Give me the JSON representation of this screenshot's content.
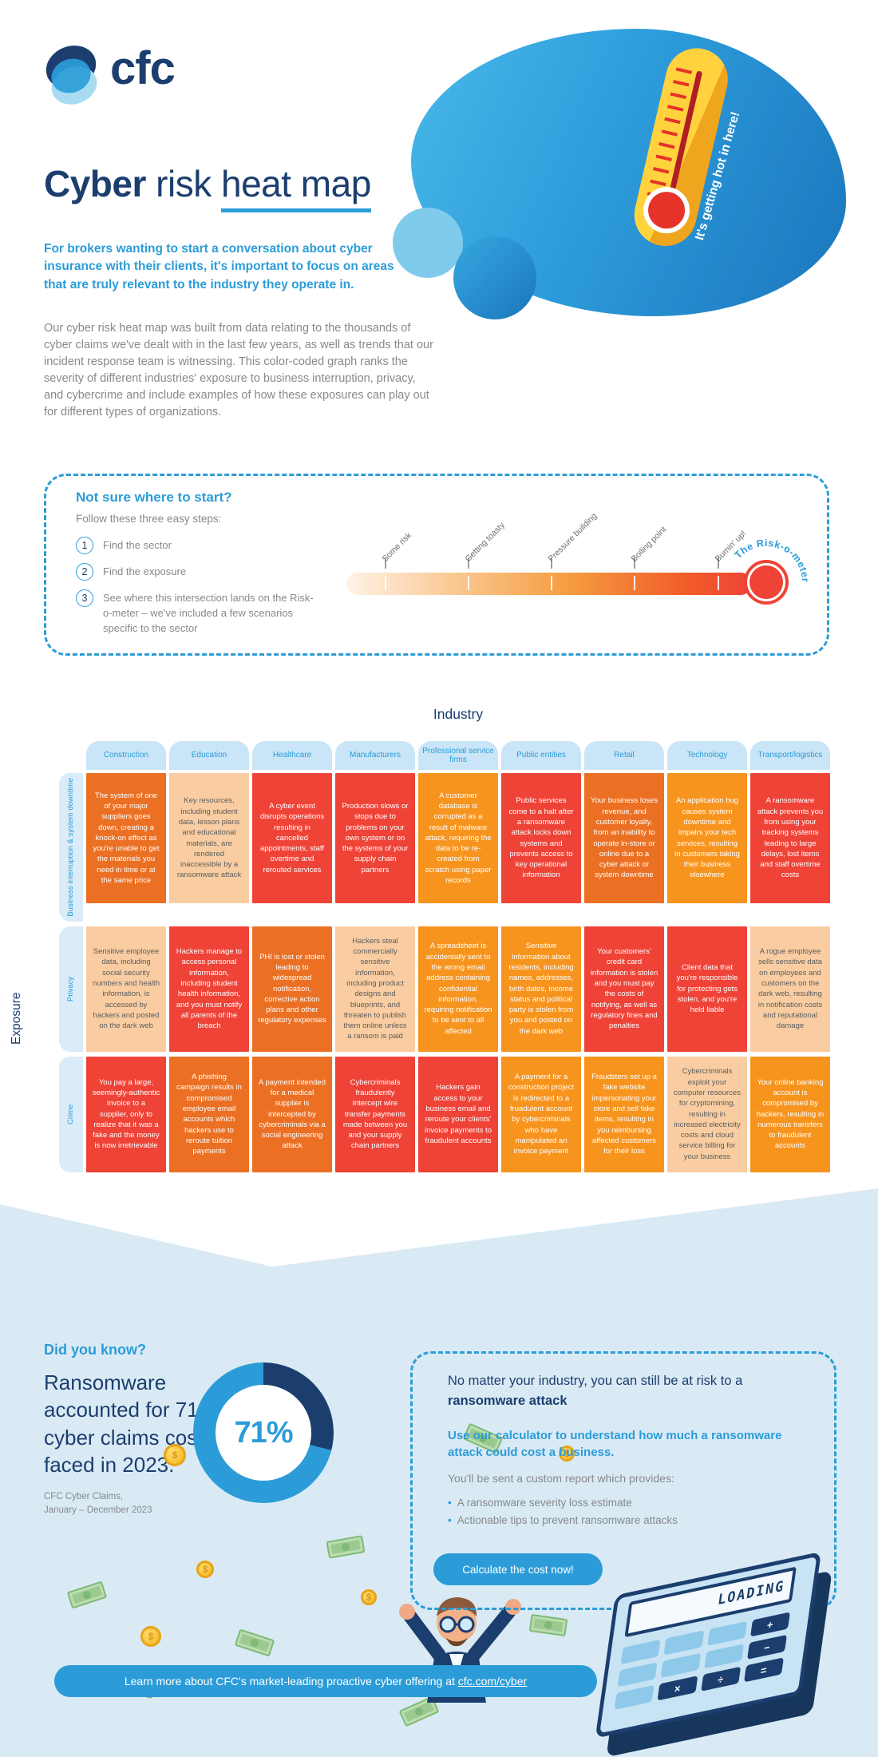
{
  "brand": {
    "logo_text": "cfc"
  },
  "header": {
    "title": {
      "bold": "Cyber",
      "regular": " risk ",
      "underlined": "heat map"
    },
    "intro": "For brokers wanting to start a conversation about cyber insurance with their clients, it's important to focus on areas that are truly relevant to the industry they operate in.",
    "body": "Our cyber risk heat map was built from data relating to the thousands of cyber claims we've dealt with in the last few years, as well as trends that our incident response team is witnessing. This color-coded graph ranks the severity of different industries' exposure to business interruption, privacy, and cybercrime and include examples of how these exposures can play out for different types of organizations.",
    "thermometer_caption": "It's getting hot in here!"
  },
  "steps_box": {
    "heading": "Not sure where to start?",
    "subheading": "Follow these three easy steps:",
    "steps": [
      {
        "num": "1",
        "text": "Find the sector"
      },
      {
        "num": "2",
        "text": "Find the exposure"
      },
      {
        "num": "3",
        "text": "See where this intersection lands on the Risk-o-meter – we've included a few scenarios specific to the sector"
      }
    ],
    "meter": {
      "labels": [
        "Some risk",
        "Getting toasty",
        "Pressure building",
        "Boiling point",
        "Burnin' up!"
      ],
      "name": "The Risk-o-meter"
    }
  },
  "heatmap": {
    "industry_label": "Industry",
    "exposure_label": "Exposure",
    "columns": [
      "Construction",
      "Education",
      "Healthcare",
      "Manufacturers",
      "Professional service firms",
      "Public entities",
      "Retail",
      "Technology",
      "Transport/logistics"
    ],
    "severity_colors": {
      "low": "#F9CDA1",
      "medium": "#F7941E",
      "high": "#EB7023",
      "severe": "#EF4337"
    },
    "rows": [
      {
        "label": "Business interruption & system downtime",
        "cells": [
          {
            "level": "high",
            "text": "The system of one of your major suppliers goes down, creating a knock-on effect as you're unable to get the materials you need in time or at the same price"
          },
          {
            "level": "low",
            "text": "Key resources, including student data, lesson plans and educational materials, are rendered inaccessible by a ransomware attack"
          },
          {
            "level": "severe",
            "text": "A cyber event disrupts operations resulting in cancelled appointments, staff overtime and rerouted services"
          },
          {
            "level": "severe",
            "text": "Production slows or stops due to problems on your own system or on the systems of your supply chain partners"
          },
          {
            "level": "med",
            "text": "A customer database is corrupted as a result of malware attack, requiring the data to be re-created from scratch using paper records"
          },
          {
            "level": "severe",
            "text": "Public services come to a halt after a ransomware attack locks down systems and prevents access to key operational information"
          },
          {
            "level": "high",
            "text": "Your business loses revenue, and customer loyalty, from an inability to operate in-store or online due to a cyber attack or system downtime"
          },
          {
            "level": "med",
            "text": "An application bug causes system downtime and impairs your tech services, resulting in customers taking their business elsewhere"
          },
          {
            "level": "severe",
            "text": "A ransomware attack prevents you from using your tracking systems leading to large delays, lost items and staff overtime costs"
          }
        ]
      },
      {
        "label": "Privacy",
        "cells": [
          {
            "level": "low",
            "text": "Sensitive employee data, including social security numbers and health information, is accessed by hackers and posted on the dark web"
          },
          {
            "level": "severe",
            "text": "Hackers manage to access personal information, including student health information, and you must notify all parents of the breach"
          },
          {
            "level": "high",
            "text": "PHI is lost or stolen leading to widespread notification, corrective action plans and other regulatory expenses"
          },
          {
            "level": "low",
            "text": "Hackers steal commercially sensitive information, including product designs and blueprints, and threaten to publish them online unless a ransom is paid"
          },
          {
            "level": "med",
            "text": "A spreadsheet is accidentally sent to the wrong email address containing confidential information, requiring notification to be sent to all affected"
          },
          {
            "level": "med",
            "text": "Sensitive information about residents, including names, addresses, birth dates, income status and political party is stolen from you and posted on the dark web"
          },
          {
            "level": "severe",
            "text": "Your customers' credit card information is stolen and you must pay the costs of notifying, as well as regulatory fines and penalties"
          },
          {
            "level": "severe",
            "text": "Client data that you're responsible for protecting gets stolen, and you're held liable"
          },
          {
            "level": "low",
            "text": "A rogue employee sells sensitive data on employees and customers on the dark web, resulting in notification costs and reputational damage"
          }
        ]
      },
      {
        "label": "Crime",
        "cells": [
          {
            "level": "severe",
            "text": "You pay a large, seemingly-authentic invoice to a supplier, only to realize that it was a fake and the money is now irretrievable"
          },
          {
            "level": "high",
            "text": "A phishing campaign results in compromised employee email accounts which hackers use to reroute tuition payments"
          },
          {
            "level": "high",
            "text": "A payment intended for a medical supplier is intercepted by cybercriminals via a social engineering attack"
          },
          {
            "level": "severe",
            "text": "Cybercriminals fraudulently intercept wire transfer payments made between you and your supply chain partners"
          },
          {
            "level": "severe",
            "text": "Hackers gain access to your business email and reroute your clients' invoice payments to fraudulent accounts"
          },
          {
            "level": "med",
            "text": "A payment for a construction project is redirected to a fruadulent account by cybercriminals who have manipulated an invoice payment"
          },
          {
            "level": "med",
            "text": "Fraudsters set up a fake website impersonating your store and sell fake items, resulting in you reimbursing affected customers for their loss"
          },
          {
            "level": "low",
            "text": "Cybercriminals exploit your computer resources for cryptomining, resulting in increased electricity costs and cloud service billing for your business"
          },
          {
            "level": "med",
            "text": "Your online banking account is compromised by hackers, resulting in numerous transfers to fraudulent accounts"
          }
        ]
      }
    ]
  },
  "did_you_know": {
    "heading": "Did you know?",
    "stat_text": "Ransomware accounted for 71% of cyber claims costs we faced in 2023.",
    "source_line1": "CFC Cyber Claims,",
    "source_line2": "January – December 2023",
    "donut": {
      "value_label": "71%",
      "percent": 71
    }
  },
  "calculator_box": {
    "line1_regular": "No matter your industry, you can still be at risk to a ",
    "line1_bold": "ransomware attack",
    "cta_text": "Use our calculator to understand how much a ransomware attack could cost a business.",
    "report_intro": "You'll be sent a custom report which provides:",
    "bullets": [
      "A ransomware severity loss estimate",
      "Actionable tips to prevent ransomware attacks"
    ],
    "button_label": "Calculate the cost now!"
  },
  "calculator_graphic": {
    "display": "LOADING",
    "keys": [
      "",
      "",
      "",
      "+",
      "",
      "",
      "",
      "−",
      "",
      "×",
      "÷",
      "="
    ]
  },
  "footer": {
    "text": "Learn more about CFC's market-leading proactive cyber offering at ",
    "link_text": "cfc.com/cyber"
  },
  "colors": {
    "navy": "#1C3E6E",
    "accent_blue": "#2B9CD8",
    "light_blue_bg": "#D9EAF5",
    "severity_low": "#F9CDA1",
    "severity_medium": "#F7941E",
    "severity_high": "#EB7023",
    "severity_severe": "#EF4337"
  }
}
